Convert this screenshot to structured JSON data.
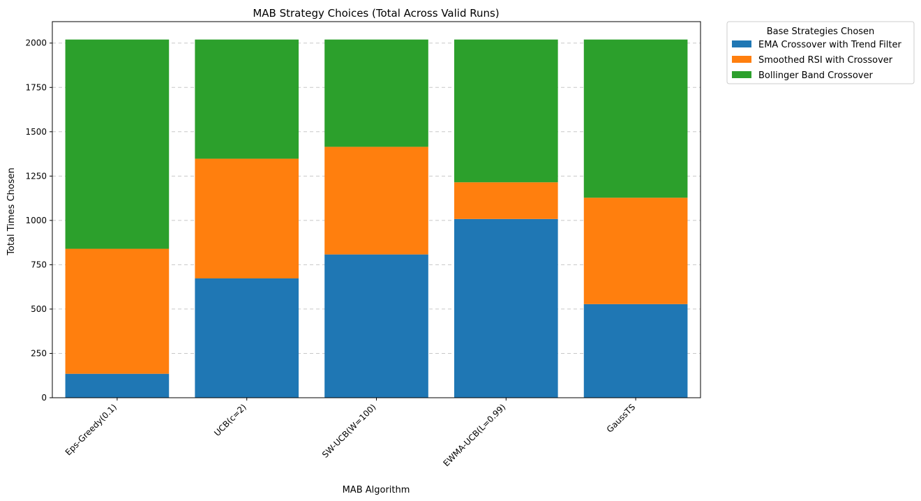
{
  "chart_data": {
    "type": "bar",
    "stacked": true,
    "title": "MAB Strategy Choices (Total Across Valid Runs)",
    "xlabel": "MAB Algorithm",
    "ylabel": "Total Times Chosen",
    "categories": [
      "Eps-Greedy(0.1)",
      "UCB(c=2)",
      "SW-UCB(W=100)",
      "EWMA-UCB(L=0.99)",
      "GaussTS"
    ],
    "series": [
      {
        "name": "EMA Crossover with Trend Filter",
        "color": "#1f77b4",
        "values": [
          135,
          673,
          808,
          1008,
          528
        ]
      },
      {
        "name": "Smoothed RSI with Crossover",
        "color": "#ff7f0e",
        "values": [
          705,
          675,
          607,
          207,
          600
        ]
      },
      {
        "name": "Bollinger Band Crossover",
        "color": "#2ca02c",
        "values": [
          1180,
          672,
          605,
          805,
          892
        ]
      }
    ],
    "ylim": [
      0,
      2121
    ],
    "yticks": [
      0,
      250,
      500,
      750,
      1000,
      1250,
      1500,
      1750,
      2000
    ],
    "grid": true,
    "legend": {
      "title": "Base Strategies Chosen",
      "placement": "outside-top-right"
    }
  }
}
